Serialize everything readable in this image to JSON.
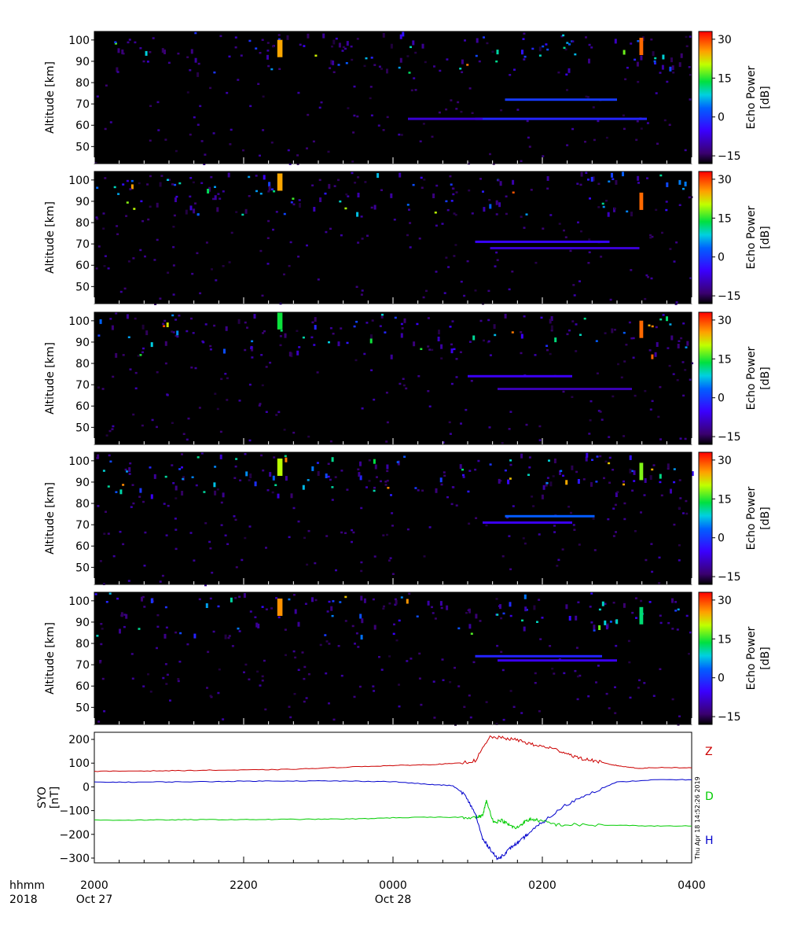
{
  "colorbar": {
    "label_line1": "Echo Power",
    "label_line2": "[dB]",
    "ticks": [
      "30",
      "15",
      "0",
      "−15"
    ],
    "tick_values": [
      30,
      15,
      0,
      -15
    ],
    "range": [
      -18,
      33
    ]
  },
  "panels": [
    {
      "ylabel": "Altitude [km]",
      "yticks": [
        "100",
        "90",
        "80",
        "70",
        "60",
        "50"
      ],
      "ytick_values": [
        100,
        90,
        80,
        70,
        60,
        50
      ],
      "ylim": [
        42,
        104
      ]
    },
    {
      "ylabel": "Altitude [km]",
      "yticks": [
        "100",
        "90",
        "80",
        "70",
        "60",
        "50"
      ],
      "ytick_values": [
        100,
        90,
        80,
        70,
        60,
        50
      ],
      "ylim": [
        42,
        104
      ]
    },
    {
      "ylabel": "Altitude [km]",
      "yticks": [
        "100",
        "90",
        "80",
        "70",
        "60",
        "50"
      ],
      "ytick_values": [
        100,
        90,
        80,
        70,
        60,
        50
      ],
      "ylim": [
        42,
        104
      ]
    },
    {
      "ylabel": "Altitude [km]",
      "yticks": [
        "100",
        "90",
        "80",
        "70",
        "60",
        "50"
      ],
      "ytick_values": [
        100,
        90,
        80,
        70,
        60,
        50
      ],
      "ylim": [
        42,
        104
      ]
    },
    {
      "ylabel": "Altitude [km]",
      "yticks": [
        "100",
        "90",
        "80",
        "70",
        "60",
        "50"
      ],
      "ytick_values": [
        100,
        90,
        80,
        70,
        60,
        50
      ],
      "ylim": [
        42,
        104
      ]
    }
  ],
  "xaxis": {
    "row1_label": "hhmm",
    "row2_label": "2018",
    "ticks": [
      "2000",
      "2200",
      "0000",
      "0200",
      "0400"
    ],
    "tick_hours": [
      0,
      2,
      4,
      6,
      8
    ],
    "dates": [
      {
        "text": "Oct 27",
        "hour": 0
      },
      {
        "text": "Oct 28",
        "hour": 4
      }
    ],
    "range_hours": [
      0,
      8
    ]
  },
  "magnetometer": {
    "ylabel_line1": "SYO",
    "ylabel_line2": "[nT]",
    "yticks": [
      "200",
      "100",
      "0",
      "−100",
      "−200",
      "−300"
    ],
    "ytick_values": [
      200,
      100,
      0,
      -100,
      -200,
      -300
    ],
    "ylim": [
      -320,
      230
    ],
    "stamp": "Thu Apr 18 14:52:26 2019",
    "colors": {
      "Z": "#cc0000",
      "D": "#00cc00",
      "H": "#0000cc"
    }
  },
  "chart_data": [
    {
      "type": "heatmap",
      "description_fields": "echo power vs time and altitude, five radar panels",
      "xlabel": "hhmm",
      "ylabel": "Altitude [km]",
      "x_units": "hours after 2000 UT Oct 27 2018",
      "xlim": [
        0,
        8
      ],
      "ylim": [
        42,
        104
      ],
      "zlim": [
        -18,
        33
      ],
      "panels_features": [
        [
          {
            "t": 5.1,
            "t2": 7.4,
            "alt": 63,
            "db": -2
          },
          {
            "t": 5.5,
            "t2": 7.0,
            "alt": 72,
            "db": 0
          },
          {
            "t": 4.2,
            "t2": 5.2,
            "alt": 63,
            "db": -8
          },
          {
            "t": 2.45,
            "t2": 2.52,
            "alt": 96,
            "db": 25
          },
          {
            "t": 7.3,
            "t2": 7.35,
            "alt": 97,
            "db": 28
          }
        ],
        [
          {
            "t": 5.1,
            "t2": 6.9,
            "alt": 71,
            "db": -5
          },
          {
            "t": 5.3,
            "t2": 7.3,
            "alt": 68,
            "db": -8
          },
          {
            "t": 2.45,
            "t2": 2.52,
            "alt": 99,
            "db": 25
          },
          {
            "t": 7.3,
            "t2": 7.35,
            "alt": 90,
            "db": 28
          }
        ],
        [
          {
            "t": 5.0,
            "t2": 6.4,
            "alt": 74,
            "db": -6
          },
          {
            "t": 5.4,
            "t2": 7.2,
            "alt": 68,
            "db": -10
          },
          {
            "t": 2.45,
            "t2": 2.52,
            "alt": 100,
            "db": 14
          },
          {
            "t": 7.3,
            "t2": 7.35,
            "alt": 96,
            "db": 28
          }
        ],
        [
          {
            "t": 5.5,
            "t2": 6.7,
            "alt": 74,
            "db": 3
          },
          {
            "t": 5.2,
            "t2": 6.4,
            "alt": 71,
            "db": -6
          },
          {
            "t": 2.45,
            "t2": 2.52,
            "alt": 97,
            "db": 20
          },
          {
            "t": 7.3,
            "t2": 7.35,
            "alt": 95,
            "db": 18
          }
        ],
        [
          {
            "t": 5.1,
            "t2": 6.8,
            "alt": 74,
            "db": -2
          },
          {
            "t": 5.4,
            "t2": 7.0,
            "alt": 72,
            "db": -6
          },
          {
            "t": 2.45,
            "t2": 2.52,
            "alt": 97,
            "db": 26
          },
          {
            "t": 7.3,
            "t2": 7.35,
            "alt": 93,
            "db": 12
          }
        ]
      ]
    },
    {
      "type": "line",
      "ylabel": "SYO [nT]",
      "x_units": "hours after 2000 UT Oct 27 2018",
      "xlim": [
        0,
        8
      ],
      "ylim": [
        -320,
        230
      ],
      "series": [
        {
          "name": "Z",
          "x": [
            0,
            0.5,
            1,
            1.5,
            2,
            2.5,
            3,
            3.5,
            4,
            4.3,
            4.6,
            4.9,
            5.1,
            5.3,
            5.5,
            5.7,
            5.9,
            6.1,
            6.3,
            6.5,
            6.7,
            6.9,
            7.1,
            7.3,
            7.6,
            8
          ],
          "y": [
            65,
            67,
            68,
            70,
            71,
            73,
            78,
            85,
            90,
            92,
            95,
            100,
            110,
            210,
            205,
            195,
            175,
            165,
            145,
            120,
            110,
            95,
            85,
            78,
            82,
            80
          ]
        },
        {
          "name": "D",
          "x": [
            0,
            0.5,
            1,
            1.5,
            2,
            2.5,
            3,
            3.5,
            4,
            4.5,
            4.9,
            5.1,
            5.2,
            5.25,
            5.35,
            5.45,
            5.55,
            5.65,
            5.75,
            5.85,
            6.0,
            6.2,
            6.5,
            7.0,
            7.5,
            8
          ],
          "y": [
            -140,
            -140,
            -139,
            -138,
            -138,
            -137,
            -136,
            -135,
            -130,
            -128,
            -128,
            -128,
            -122,
            -60,
            -150,
            -140,
            -160,
            -175,
            -150,
            -135,
            -145,
            -160,
            -160,
            -162,
            -165,
            -165
          ]
        },
        {
          "name": "H",
          "x": [
            0,
            0.5,
            1,
            1.5,
            2,
            2.5,
            3,
            3.5,
            4,
            4.5,
            4.8,
            4.95,
            5.1,
            5.2,
            5.3,
            5.4,
            5.5,
            5.6,
            5.7,
            5.8,
            6.0,
            6.3,
            6.6,
            7.0,
            7.5,
            8
          ],
          "y": [
            20,
            20,
            21,
            22,
            24,
            25,
            25,
            24,
            22,
            10,
            5,
            -30,
            -110,
            -220,
            -260,
            -305,
            -280,
            -250,
            -230,
            -200,
            -150,
            -80,
            -30,
            20,
            30,
            30
          ]
        }
      ]
    }
  ]
}
